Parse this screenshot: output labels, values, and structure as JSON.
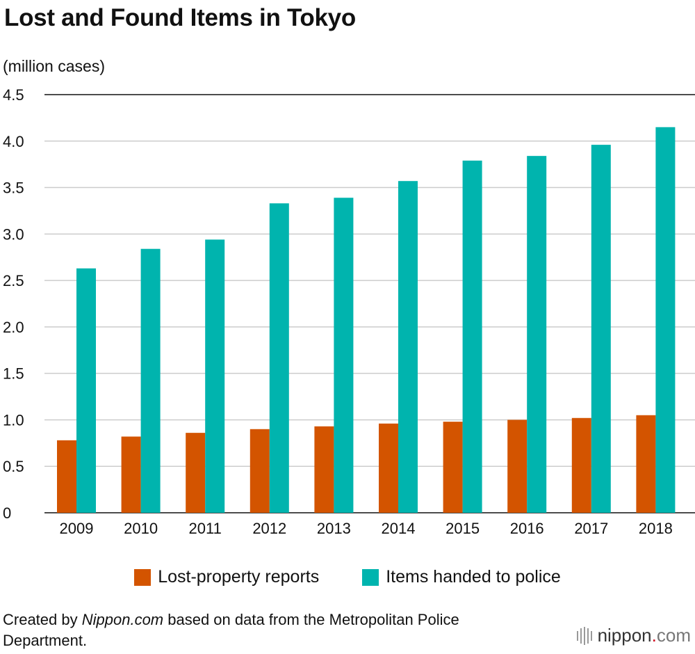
{
  "title": "Lost and Found Items in Tokyo",
  "colors": {
    "series1": "#d35400",
    "series2": "#00b4ae",
    "grid": "#cccccc",
    "axis": "#111111"
  },
  "source": {
    "prefix": "Created by ",
    "site": "Nippon.com",
    "suffix": " based on data from the Metropolitan Police Department."
  },
  "logo": {
    "name": "nippon",
    "dot": ".",
    "tld": "com"
  },
  "chart_data": {
    "type": "bar",
    "title": "Lost and Found Items in Tokyo",
    "ylabel": "(million cases)",
    "xlabel": "",
    "ylim": [
      0,
      4.5
    ],
    "yticks": [
      "0",
      "0.5",
      "1.0",
      "1.5",
      "2.0",
      "2.5",
      "3.0",
      "3.5",
      "4.0",
      "4.5"
    ],
    "categories": [
      "2009",
      "2010",
      "2011",
      "2012",
      "2013",
      "2014",
      "2015",
      "2016",
      "2017",
      "2018"
    ],
    "series": [
      {
        "name": "Lost-property reports",
        "values": [
          0.78,
          0.82,
          0.86,
          0.9,
          0.93,
          0.96,
          0.98,
          1.0,
          1.02,
          1.05
        ]
      },
      {
        "name": "Items handed to police",
        "values": [
          2.63,
          2.84,
          2.94,
          3.33,
          3.39,
          3.57,
          3.79,
          3.84,
          3.96,
          4.15
        ]
      }
    ],
    "legend": "bottom-center",
    "grid": true
  }
}
